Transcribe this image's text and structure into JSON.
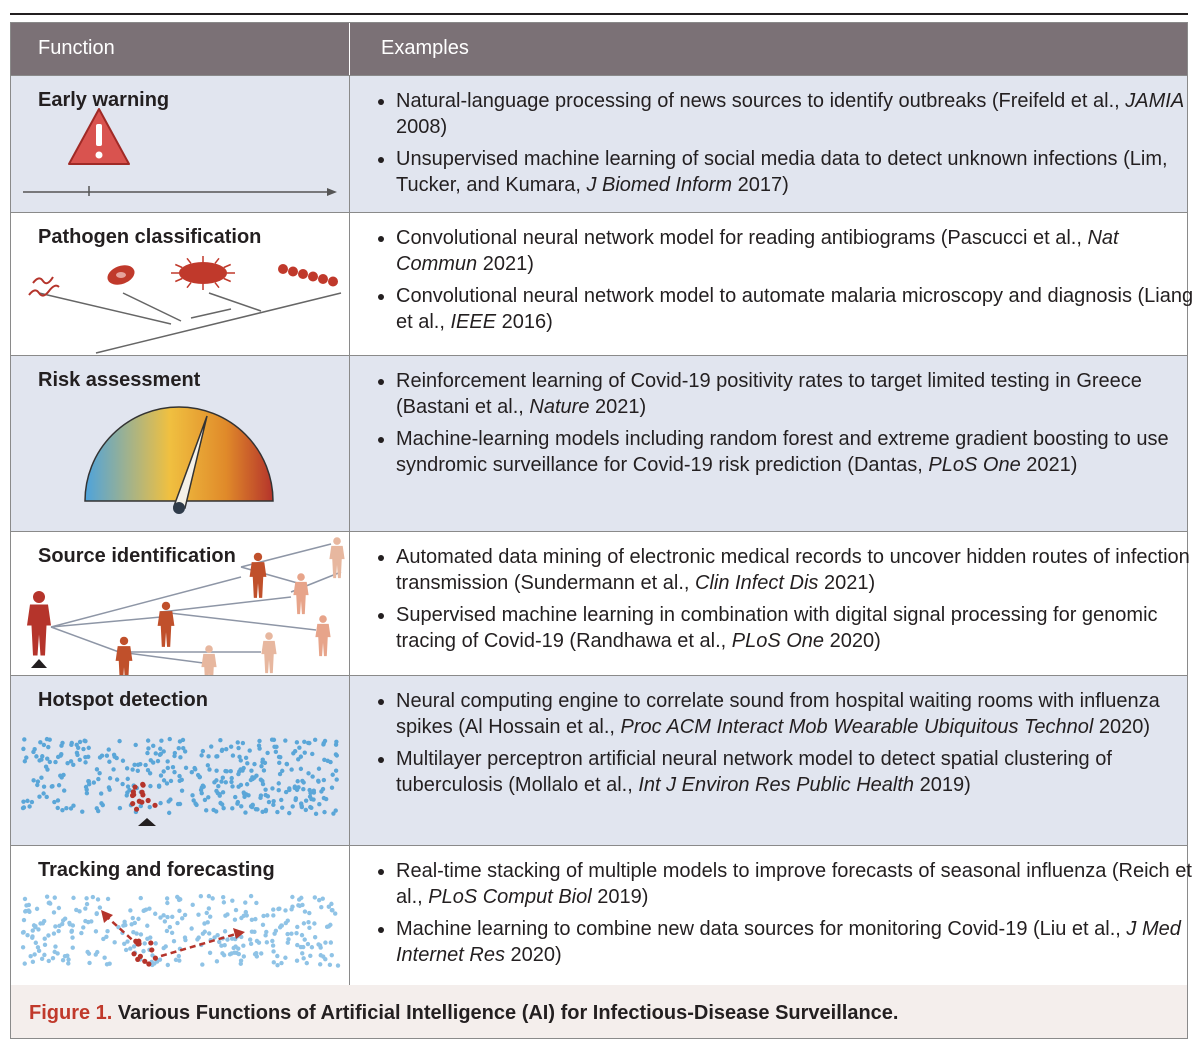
{
  "header": {
    "columns": [
      "Function",
      "Examples"
    ]
  },
  "rows": [
    {
      "function": "Early warning",
      "examples": [
        [
          "Natural-language processing of news sources to identify outbreaks (Freifeld et al., ",
          {
            "text": "JAMIA",
            "italic": true
          },
          " 2008)"
        ],
        [
          "Unsupervised machine learning of social media data to detect unknown infections (Lim, Tucker, and Kumara, ",
          {
            "text": "J Biomed Inform",
            "italic": true
          },
          " 2017)"
        ]
      ]
    },
    {
      "function": "Pathogen classification",
      "examples": [
        [
          "Convolutional neural network model for reading antibiograms (Pascucci et al., ",
          {
            "text": "Nat Commun",
            "italic": true
          },
          " 2021)"
        ],
        [
          "Convolutional neural network model to automate malaria microscopy and diagnosis (Liang et al., ",
          {
            "text": "IEEE",
            "italic": true
          },
          " 2016)"
        ]
      ]
    },
    {
      "function": "Risk assessment",
      "examples": [
        [
          "Reinforcement learning of Covid-19 positivity rates to target limited testing in Greece (Bastani et al., ",
          {
            "text": "Nature",
            "italic": true
          },
          " 2021)"
        ],
        [
          "Machine-learning models including random forest and extreme gradient boosting to use syndromic surveillance for Covid-19 risk prediction (Dantas, ",
          {
            "text": "PLoS One",
            "italic": true
          },
          " 2021)"
        ]
      ]
    },
    {
      "function": "Source identification",
      "examples": [
        [
          "Automated data mining of electronic medical records to uncover hidden routes of infection transmission (Sundermann et al., ",
          {
            "text": "Clin Infect Dis",
            "italic": true
          },
          " 2021)"
        ],
        [
          "Supervised machine learning in combination with digital signal processing for genomic tracing of Covid-19 (Randhawa et al., ",
          {
            "text": "PLoS One",
            "italic": true
          },
          " 2020)"
        ]
      ]
    },
    {
      "function": "Hotspot detection",
      "examples": [
        [
          "Neural computing engine to correlate sound from hospital waiting rooms with influenza spikes (Al Hossain et al., ",
          {
            "text": "Proc ACM Interact Mob Wearable Ubiquitous Technol",
            "italic": true
          },
          " 2020)"
        ],
        [
          "Multilayer perceptron artificial neural network model to detect spatial clustering of tuberculosis (Mollalo et al., ",
          {
            "text": "Int J Environ Res Public Health",
            "italic": true
          },
          " 2019)"
        ]
      ]
    },
    {
      "function": "Tracking and forecasting",
      "examples": [
        [
          "Real-time stacking of multiple models to improve forecasts of seasonal influenza (Reich et al., ",
          {
            "text": "PLoS Comput Biol",
            "italic": true
          },
          " 2019)"
        ],
        [
          "Machine learning to combine new data sources for monitoring Covid-19 (Liu et al., ",
          {
            "text": "J Med Internet Res",
            "italic": true
          },
          " 2020)"
        ]
      ]
    }
  ],
  "caption": {
    "label": "Figure 1.",
    "text": "Various Functions of Artificial Intelligence (AI) for Infectious-Disease Surveillance."
  }
}
